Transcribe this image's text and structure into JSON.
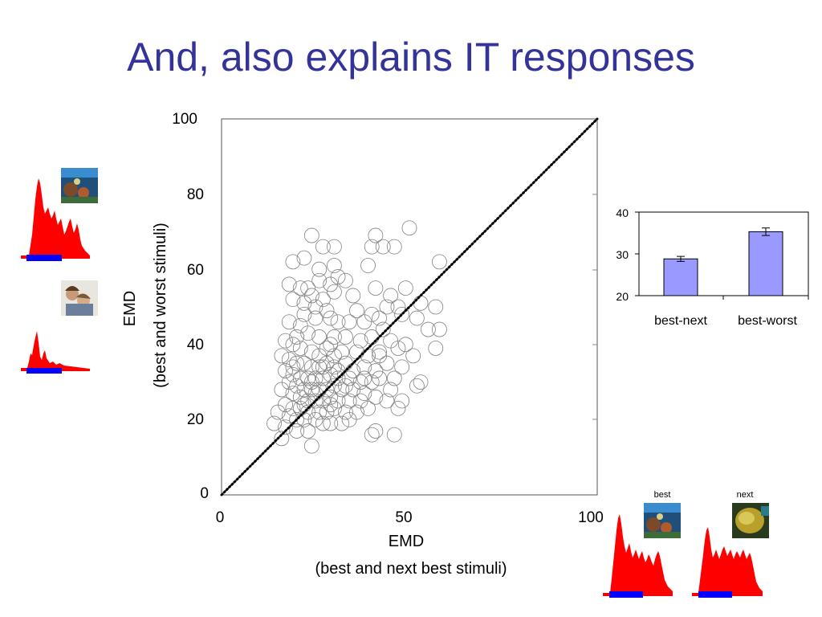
{
  "title": "And, also explains IT responses",
  "scatter": {
    "xlabel_line1": "EMD",
    "xlabel_line2": "(best and next best stimuli)",
    "ylabel_line1": "EMD",
    "ylabel_line2": "(best and worst stimuli)",
    "x_ticks": [
      "0",
      "50",
      "100"
    ],
    "y_ticks": [
      "0",
      "20",
      "40",
      "60",
      "80",
      "100"
    ]
  },
  "bar": {
    "y_ticks": [
      "20",
      "30",
      "40"
    ],
    "categories": [
      "best-next",
      "best-worst"
    ]
  },
  "insets": {
    "best_label": "best",
    "next_label": "next"
  },
  "chart_data": [
    {
      "type": "scatter",
      "title": "",
      "xlabel": "EMD (best and next best stimuli)",
      "ylabel": "EMD (best and worst stimuli)",
      "xlim": [
        0,
        100
      ],
      "ylim": [
        0,
        100
      ],
      "grid": false,
      "reference_line": {
        "style": "dotted",
        "points": [
          [
            0,
            0
          ],
          [
            100,
            100
          ]
        ]
      },
      "points": [
        [
          24,
          69
        ],
        [
          27,
          66
        ],
        [
          30,
          66
        ],
        [
          40,
          66
        ],
        [
          41,
          69
        ],
        [
          43,
          66
        ],
        [
          46,
          66
        ],
        [
          50,
          71
        ],
        [
          58,
          62
        ],
        [
          19,
          62
        ],
        [
          22,
          63
        ],
        [
          26,
          60
        ],
        [
          30,
          61
        ],
        [
          39,
          61
        ],
        [
          31,
          58
        ],
        [
          26,
          57
        ],
        [
          29,
          56
        ],
        [
          33,
          57
        ],
        [
          18,
          56
        ],
        [
          21,
          55
        ],
        [
          23,
          55
        ],
        [
          24,
          53
        ],
        [
          19,
          52
        ],
        [
          22,
          51
        ],
        [
          27,
          52
        ],
        [
          30,
          54
        ],
        [
          35,
          53
        ],
        [
          41,
          55
        ],
        [
          45,
          53
        ],
        [
          49,
          55
        ],
        [
          53,
          51
        ],
        [
          57,
          50
        ],
        [
          44,
          50
        ],
        [
          47,
          50
        ],
        [
          25,
          50
        ],
        [
          28,
          49
        ],
        [
          36,
          49
        ],
        [
          40,
          48
        ],
        [
          42,
          47
        ],
        [
          48,
          48
        ],
        [
          52,
          47
        ],
        [
          55,
          44
        ],
        [
          58,
          44
        ],
        [
          22,
          48
        ],
        [
          25,
          47
        ],
        [
          29,
          47
        ],
        [
          31,
          46
        ],
        [
          34,
          46
        ],
        [
          38,
          46
        ],
        [
          43,
          44
        ],
        [
          18,
          46
        ],
        [
          21,
          45
        ],
        [
          20,
          42
        ],
        [
          23,
          43
        ],
        [
          26,
          42
        ],
        [
          30,
          42
        ],
        [
          33,
          42
        ],
        [
          37,
          41
        ],
        [
          40,
          42
        ],
        [
          45,
          41
        ],
        [
          49,
          40
        ],
        [
          51,
          37
        ],
        [
          57,
          39
        ],
        [
          17,
          41
        ],
        [
          19,
          40
        ],
        [
          21,
          39
        ],
        [
          24,
          38
        ],
        [
          26,
          37
        ],
        [
          28,
          39
        ],
        [
          30,
          37
        ],
        [
          32,
          38
        ],
        [
          36,
          38
        ],
        [
          39,
          37
        ],
        [
          42,
          38
        ],
        [
          47,
          39
        ],
        [
          16,
          37
        ],
        [
          18,
          36
        ],
        [
          20,
          35
        ],
        [
          22,
          35
        ],
        [
          24,
          34
        ],
        [
          26,
          34
        ],
        [
          28,
          35
        ],
        [
          30,
          34
        ],
        [
          33,
          35
        ],
        [
          35,
          33
        ],
        [
          38,
          34
        ],
        [
          41,
          33
        ],
        [
          44,
          35
        ],
        [
          48,
          34
        ],
        [
          17,
          33
        ],
        [
          19,
          32
        ],
        [
          21,
          31
        ],
        [
          23,
          31
        ],
        [
          25,
          31
        ],
        [
          27,
          31
        ],
        [
          29,
          32
        ],
        [
          31,
          31
        ],
        [
          34,
          31
        ],
        [
          37,
          30
        ],
        [
          40,
          30
        ],
        [
          42,
          31
        ],
        [
          46,
          31
        ],
        [
          52,
          29
        ],
        [
          53,
          30
        ],
        [
          18,
          30
        ],
        [
          20,
          29
        ],
        [
          22,
          28
        ],
        [
          24,
          28
        ],
        [
          26,
          28
        ],
        [
          28,
          28
        ],
        [
          30,
          29
        ],
        [
          32,
          28
        ],
        [
          35,
          28
        ],
        [
          38,
          27
        ],
        [
          16,
          28
        ],
        [
          19,
          27
        ],
        [
          21,
          26
        ],
        [
          23,
          25
        ],
        [
          25,
          25
        ],
        [
          27,
          25
        ],
        [
          29,
          26
        ],
        [
          31,
          25
        ],
        [
          34,
          25
        ],
        [
          37,
          25
        ],
        [
          41,
          26
        ],
        [
          44,
          25
        ],
        [
          48,
          25
        ],
        [
          17,
          24
        ],
        [
          19,
          23
        ],
        [
          21,
          23
        ],
        [
          23,
          22
        ],
        [
          26,
          22
        ],
        [
          28,
          22
        ],
        [
          30,
          23
        ],
        [
          33,
          22
        ],
        [
          36,
          22
        ],
        [
          15,
          22
        ],
        [
          18,
          21
        ],
        [
          20,
          20
        ],
        [
          22,
          20
        ],
        [
          25,
          20
        ],
        [
          27,
          19
        ],
        [
          29,
          19
        ],
        [
          32,
          19
        ],
        [
          34,
          20
        ],
        [
          14,
          19
        ],
        [
          17,
          18
        ],
        [
          20,
          17
        ],
        [
          23,
          17
        ],
        [
          16,
          15
        ],
        [
          24,
          13
        ],
        [
          40,
          16
        ],
        [
          41,
          17
        ],
        [
          46,
          16
        ],
        [
          29,
          40
        ],
        [
          31,
          33
        ],
        [
          27,
          34
        ],
        [
          42,
          37
        ],
        [
          38,
          31
        ],
        [
          24,
          30
        ],
        [
          25,
          27
        ],
        [
          22,
          24
        ],
        [
          29,
          24
        ],
        [
          39,
          23
        ],
        [
          33,
          29
        ],
        [
          45,
          28
        ],
        [
          47,
          23
        ],
        [
          19,
          34
        ]
      ]
    },
    {
      "type": "bar",
      "title": "",
      "xlabel": "",
      "ylabel": "",
      "categories": [
        "best-next",
        "best-worst"
      ],
      "values": [
        28.8,
        35.3
      ],
      "error": [
        0.6,
        0.9
      ],
      "ylim": [
        20,
        40
      ],
      "yticks": [
        20,
        30,
        40
      ],
      "bar_color": "#9999ff"
    }
  ],
  "colors": {
    "title": "#33339a",
    "bar_fill": "#9999ff",
    "histogram": "#ff0000",
    "stimulus_bar": "#0000ff",
    "scatter_marker": "#808080"
  },
  "icons": [
    "coral-reef-photo",
    "couple-photo",
    "coral-reef-photo",
    "yellow-fish-photo"
  ]
}
